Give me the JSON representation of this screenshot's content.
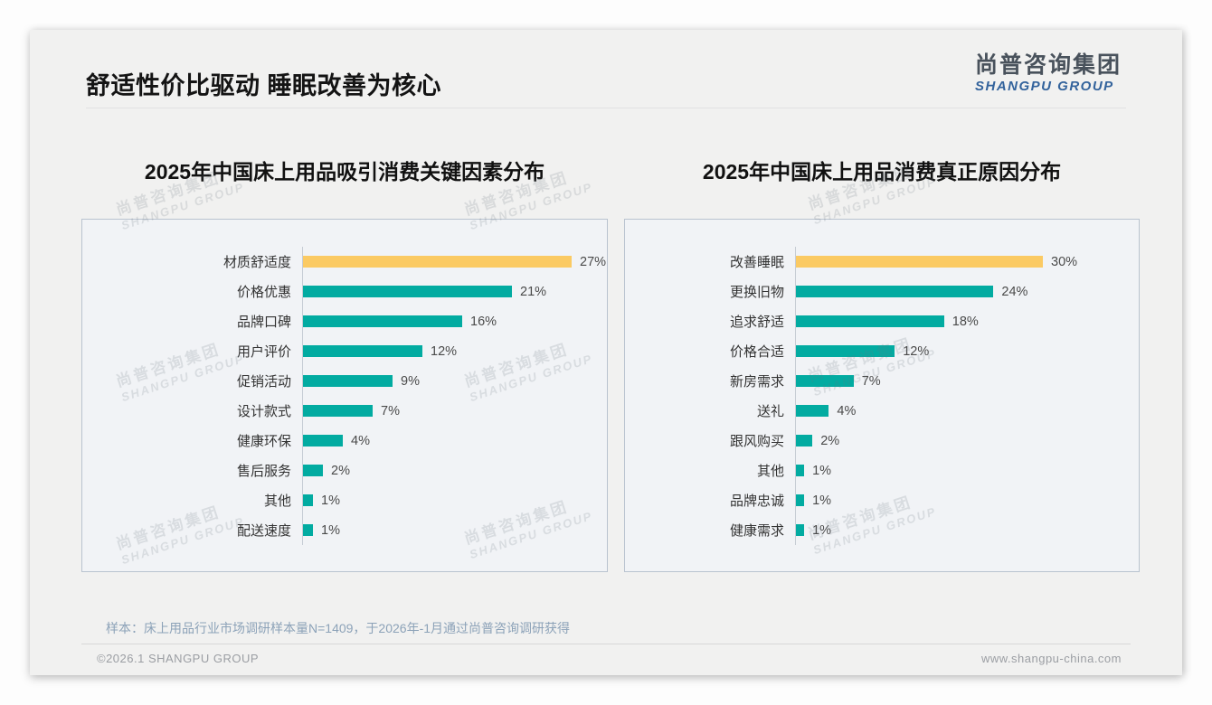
{
  "slide": {
    "title": "舒适性价比驱动 睡眠改善为核心",
    "logo": {
      "cn": "尚普咨询集团",
      "en": "SHANGPU GROUP"
    },
    "watermark": {
      "line1": "尚普咨询集团",
      "line2": "SHANGPU GROUP"
    },
    "footnote": "样本：床上用品行业市场调研样本量N=1409，于2026年-1月通过尚普咨询调研获得",
    "footer_left": "©2026.1 SHANGPU GROUP",
    "footer_right": "www.shangpu-china.com"
  },
  "colors": {
    "highlight_bar": "#fbca63",
    "bar": "#02aba1",
    "logo_en_blue": "#33639c"
  },
  "chart_data": [
    {
      "type": "bar",
      "orientation": "horizontal",
      "title": "2025年中国床上用品吸引消费关键因素分布",
      "categories": [
        "材质舒适度",
        "价格优惠",
        "品牌口碑",
        "用户评价",
        "促销活动",
        "设计款式",
        "健康环保",
        "售后服务",
        "其他",
        "配送速度"
      ],
      "values": [
        27,
        21,
        16,
        12,
        9,
        7,
        4,
        2,
        1,
        1
      ],
      "unit": "%",
      "highlight_index": 0,
      "legend": "none",
      "grid": false
    },
    {
      "type": "bar",
      "orientation": "horizontal",
      "title": "2025年中国床上用品消费真正原因分布",
      "categories": [
        "改善睡眠",
        "更换旧物",
        "追求舒适",
        "价格合适",
        "新房需求",
        "送礼",
        "跟风购买",
        "其他",
        "品牌忠诚",
        "健康需求"
      ],
      "values": [
        30,
        24,
        18,
        12,
        7,
        4,
        2,
        1,
        1,
        1
      ],
      "unit": "%",
      "highlight_index": 0,
      "legend": "none",
      "grid": false
    }
  ]
}
